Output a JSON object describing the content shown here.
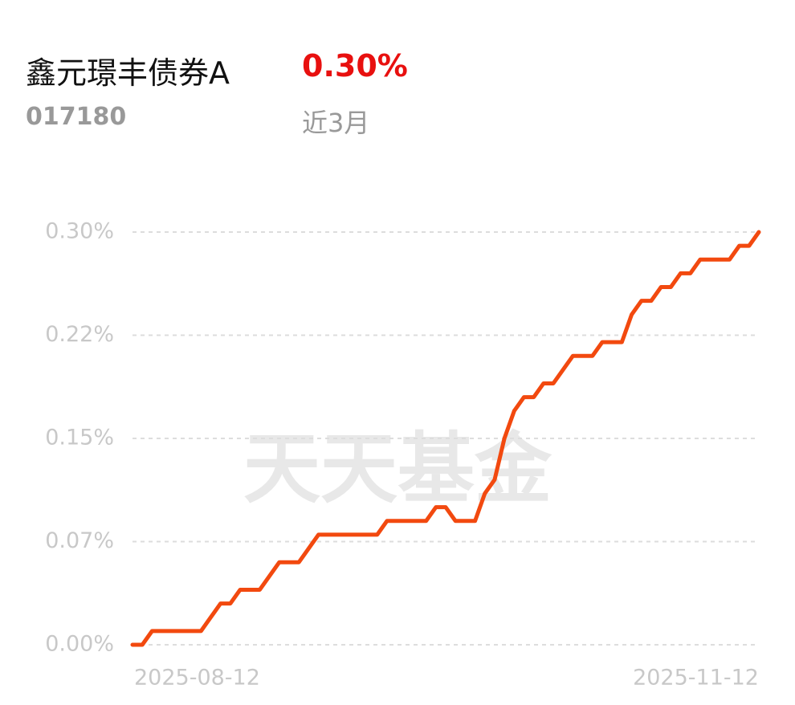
{
  "header": {
    "fund_name": "鑫元璟丰债券A",
    "return": "0.30%",
    "code": "017180",
    "period": "近3月"
  },
  "watermark": "天天基金",
  "chart_data": {
    "type": "line",
    "categories": [
      "2025-08-12",
      null,
      null,
      null,
      null,
      null,
      null,
      null,
      null,
      null,
      null,
      null,
      null,
      null,
      null,
      null,
      null,
      null,
      null,
      null,
      null,
      null,
      null,
      null,
      null,
      null,
      null,
      null,
      null,
      null,
      null,
      null,
      null,
      null,
      null,
      null,
      null,
      null,
      null,
      null,
      null,
      null,
      null,
      null,
      null,
      null,
      null,
      null,
      null,
      null,
      null,
      null,
      null,
      null,
      null,
      null,
      null,
      null,
      null,
      null,
      null,
      null,
      null,
      null,
      "2025-11-12"
    ],
    "series": [
      {
        "color": "#f2490f",
        "values": [
          0,
          0,
          0.01,
          0.01,
          0.01,
          0.01,
          0.01,
          0.01,
          0.02,
          0.03,
          0.03,
          0.04,
          0.04,
          0.04,
          0.05,
          0.06,
          0.06,
          0.06,
          0.07,
          0.08,
          0.08,
          0.08,
          0.08,
          0.08,
          0.08,
          0.08,
          0.09,
          0.09,
          0.09,
          0.09,
          0.09,
          0.1,
          0.1,
          0.09,
          0.09,
          0.09,
          0.11,
          0.12,
          0.15,
          0.17,
          0.18,
          0.18,
          0.19,
          0.19,
          0.2,
          0.21,
          0.21,
          0.21,
          0.22,
          0.22,
          0.22,
          0.24,
          0.25,
          0.25,
          0.26,
          0.26,
          0.27,
          0.27,
          0.28,
          0.28,
          0.28,
          0.28,
          0.29,
          0.29,
          0.3
        ]
      }
    ],
    "ylim": [
      0,
      0.3
    ],
    "yticks": [
      {
        "value": 0,
        "label": "0.00%"
      },
      {
        "value": 0.075,
        "label": "0.07%"
      },
      {
        "value": 0.15,
        "label": "0.15%"
      },
      {
        "value": 0.225,
        "label": "0.22%"
      },
      {
        "value": 0.3,
        "label": "0.30%"
      }
    ],
    "grid": true
  }
}
